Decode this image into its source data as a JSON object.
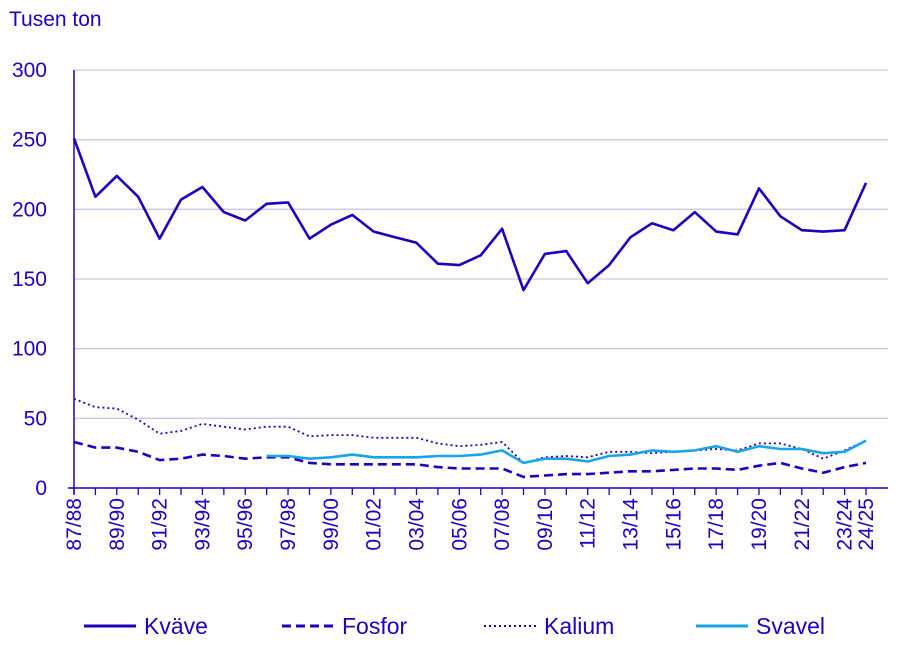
{
  "chart_data": {
    "type": "line",
    "ylabel": "Tusen ton",
    "ylim": [
      0,
      300
    ],
    "yticks": [
      "0",
      "50",
      "100",
      "150",
      "200",
      "250",
      "300"
    ],
    "grid": true,
    "legend_position": "bottom",
    "categories": [
      "87/88",
      "88/89",
      "89/90",
      "90/91",
      "91/92",
      "92/93",
      "93/94",
      "94/95",
      "95/96",
      "96/97",
      "97/98",
      "98/99",
      "99/00",
      "00/01",
      "01/02",
      "02/03",
      "03/04",
      "04/05",
      "05/06",
      "06/07",
      "07/08",
      "08/09",
      "09/10",
      "10/11",
      "11/12",
      "12/13",
      "13/14",
      "14/15",
      "15/16",
      "16/17",
      "17/18",
      "18/19",
      "19/20",
      "20/21",
      "21/22",
      "22/23",
      "23/24",
      "24/25"
    ],
    "tick_labels": [
      "87/88",
      "89/90",
      "91/92",
      "93/94",
      "95/96",
      "97/98",
      "99/00",
      "01/02",
      "03/04",
      "05/06",
      "07/08",
      "09/10",
      "11/12",
      "13/14",
      "15/16",
      "17/18",
      "19/20",
      "21/22",
      "23/24",
      "24/25"
    ],
    "series": [
      {
        "name": "Kväve",
        "color": "#1e00be",
        "style": "solid",
        "values": [
          251,
          209,
          224,
          209,
          179,
          207,
          216,
          198,
          192,
          204,
          205,
          179,
          189,
          196,
          184,
          180,
          176,
          161,
          160,
          167,
          186,
          142,
          168,
          170,
          147,
          160,
          180,
          190,
          185,
          198,
          184,
          182,
          215,
          195,
          185,
          184,
          185,
          219
        ]
      },
      {
        "name": "Fosfor",
        "color": "#1e00be",
        "style": "dashed",
        "values": [
          33,
          29,
          29,
          26,
          20,
          21,
          24,
          23,
          21,
          22,
          22,
          18,
          17,
          17,
          17,
          17,
          17,
          15,
          14,
          14,
          14,
          8,
          9,
          10,
          10,
          11,
          12,
          12,
          13,
          14,
          14,
          13,
          16,
          18,
          14,
          11,
          15,
          18
        ]
      },
      {
        "name": "Kalium",
        "color": "#1e00be",
        "style": "dotted",
        "values": [
          64,
          58,
          57,
          49,
          39,
          41,
          46,
          44,
          42,
          44,
          44,
          37,
          38,
          38,
          36,
          36,
          36,
          32,
          30,
          31,
          33,
          18,
          22,
          23,
          22,
          26,
          26,
          25,
          26,
          27,
          28,
          27,
          32,
          32,
          28,
          21,
          27,
          34
        ]
      },
      {
        "name": "Svavel",
        "color": "#19a4e6",
        "style": "solid",
        "values": [
          null,
          null,
          null,
          null,
          null,
          null,
          null,
          null,
          null,
          23,
          23,
          21,
          22,
          24,
          22,
          22,
          22,
          23,
          23,
          24,
          27,
          18,
          21,
          21,
          19,
          23,
          24,
          27,
          26,
          27,
          30,
          26,
          30,
          28,
          28,
          25,
          26,
          34
        ]
      }
    ]
  }
}
